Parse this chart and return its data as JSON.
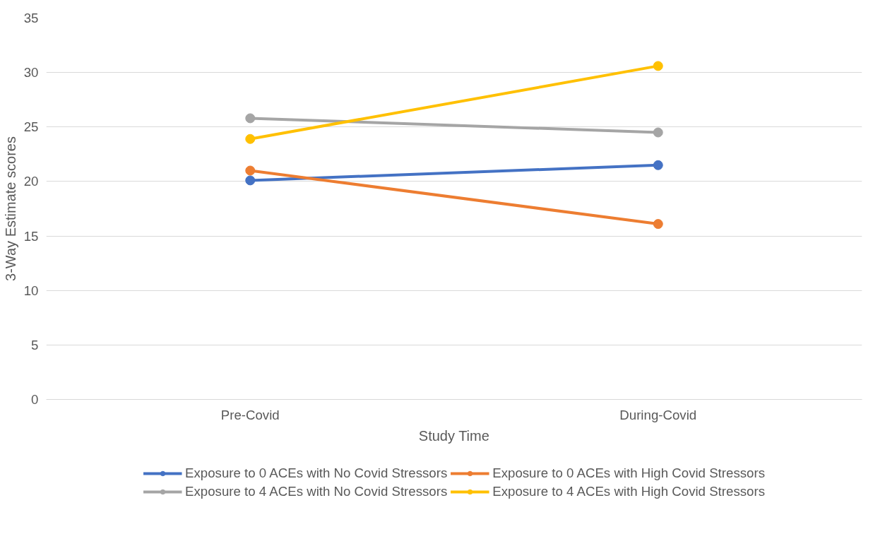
{
  "chart_data": {
    "type": "line",
    "xlabel": "Study Time",
    "ylabel": "3-Way Estimate scores",
    "categories": [
      "Pre-Covid",
      "During-Covid"
    ],
    "series": [
      {
        "name": "Exposure to 0 ACEs with No Covid Stressors",
        "color": "#4472c4",
        "values": [
          20.1,
          21.5
        ]
      },
      {
        "name": "Exposure to 0 ACEs with High Covid Stressors",
        "color": "#ed7d31",
        "values": [
          21.0,
          16.1
        ]
      },
      {
        "name": "Exposure to 4 ACEs with No Covid Stressors",
        "color": "#a5a5a5",
        "values": [
          25.8,
          24.5
        ]
      },
      {
        "name": "Exposure to 4 ACEs with High Covid Stressors",
        "color": "#ffc000",
        "values": [
          23.9,
          30.6
        ]
      }
    ],
    "ylim": [
      0,
      35
    ],
    "yticks": [
      0,
      5,
      10,
      15,
      20,
      25,
      30,
      35
    ],
    "grid": "y",
    "legend": "bottom",
    "marker": "circle",
    "line_style": "solid"
  }
}
